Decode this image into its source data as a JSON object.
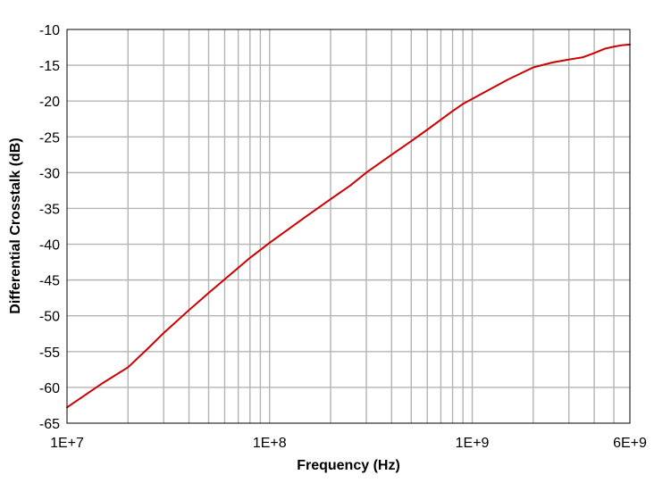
{
  "chart_data": {
    "type": "line",
    "xlabel": "Frequency (Hz)",
    "ylabel": "Differential Crosstalk (dB)",
    "xscale": "log",
    "xlim": [
      10000000,
      6000000000
    ],
    "ylim": [
      -65,
      -10
    ],
    "grid": true,
    "x_tick_labels": [
      {
        "value": 10000000,
        "label": "1E+7"
      },
      {
        "value": 100000000,
        "label": "1E+8"
      },
      {
        "value": 1000000000,
        "label": "1E+9"
      },
      {
        "value": 6000000000,
        "label": "6E+9"
      }
    ],
    "y_ticks": [
      -10,
      -15,
      -20,
      -25,
      -30,
      -35,
      -40,
      -45,
      -50,
      -55,
      -60,
      -65
    ],
    "y_tick_labels": [
      "-10",
      "-15",
      "-20",
      "-25",
      "-30",
      "-35",
      "-40",
      "-45",
      "-50",
      "-55",
      "-60",
      "-65"
    ],
    "series": [
      {
        "color": "#cc0000",
        "points": [
          [
            10000000,
            -62.8
          ],
          [
            15000000,
            -59.4
          ],
          [
            20000000,
            -57.2
          ],
          [
            25000000,
            -54.6
          ],
          [
            30000000,
            -52.4
          ],
          [
            40000000,
            -49.2
          ],
          [
            50000000,
            -46.8
          ],
          [
            60000000,
            -44.9
          ],
          [
            70000000,
            -43.3
          ],
          [
            80000000,
            -41.9
          ],
          [
            90000000,
            -40.8
          ],
          [
            100000000,
            -39.8
          ],
          [
            150000000,
            -36.2
          ],
          [
            200000000,
            -33.7
          ],
          [
            250000000,
            -31.8
          ],
          [
            300000000,
            -30.0
          ],
          [
            400000000,
            -27.5
          ],
          [
            500000000,
            -25.6
          ],
          [
            600000000,
            -24.0
          ],
          [
            700000000,
            -22.6
          ],
          [
            800000000,
            -21.4
          ],
          [
            900000000,
            -20.4
          ],
          [
            1000000000,
            -19.7
          ],
          [
            1500000000,
            -17.0
          ],
          [
            2000000000,
            -15.3
          ],
          [
            2500000000,
            -14.6
          ],
          [
            3000000000,
            -14.2
          ],
          [
            3500000000,
            -13.9
          ],
          [
            4000000000,
            -13.3
          ],
          [
            4500000000,
            -12.7
          ],
          [
            5000000000,
            -12.4
          ],
          [
            5500000000,
            -12.2
          ],
          [
            6000000000,
            -12.1
          ]
        ]
      }
    ]
  }
}
